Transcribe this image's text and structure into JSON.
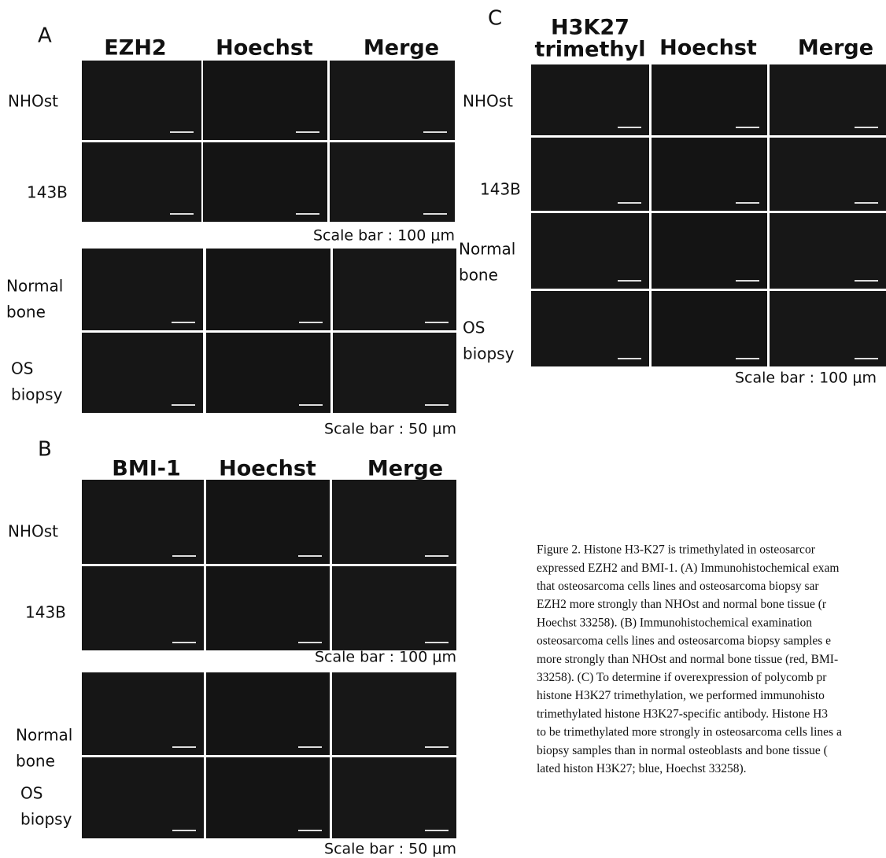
{
  "panels": [
    {
      "letter": "A",
      "groups": [
        {
          "columns": [
            [
              "EZH2"
            ],
            [
              "Hoechst"
            ],
            [
              "Merge"
            ]
          ],
          "rows": [
            [
              "NHOst"
            ],
            [
              "143B"
            ]
          ],
          "scale_bar": "Scale bar : 100 μm"
        },
        {
          "rows": [
            [
              "Normal",
              "bone"
            ],
            [
              "OS",
              "biopsy"
            ]
          ],
          "scale_bar": "Scale bar : 50 μm"
        }
      ]
    },
    {
      "letter": "B",
      "groups": [
        {
          "columns": [
            [
              "BMI-1"
            ],
            [
              "Hoechst"
            ],
            [
              "Merge"
            ]
          ],
          "rows": [
            [
              "NHOst"
            ],
            [
              "143B"
            ]
          ],
          "scale_bar": "Scale bar : 100 μm"
        },
        {
          "rows": [
            [
              "Normal",
              "bone"
            ],
            [
              "OS",
              "biopsy"
            ]
          ],
          "scale_bar": "Scale bar : 50 μm"
        }
      ]
    },
    {
      "letter": "C",
      "groups": [
        {
          "columns": [
            [
              "H3K27",
              "trimethyl"
            ],
            [
              "Hoechst"
            ],
            [
              "Merge"
            ]
          ],
          "rows": [
            [
              "NHOst"
            ],
            [
              "143B"
            ],
            [
              "Normal",
              "bone"
            ],
            [
              "OS",
              "biopsy"
            ]
          ],
          "scale_bar": "Scale bar : 100 μm"
        }
      ]
    }
  ],
  "caption": {
    "lines": [
      "Figure 2. Histone H3-K27 is trimethylated in osteosarcor",
      "expressed EZH2 and BMI-1. (A) Immunohistochemical exam",
      "that osteosarcoma cells lines and osteosarcoma biopsy sar",
      "EZH2 more strongly than NHOst and normal bone tissue (r",
      "Hoechst 33258). (B) Immunohistochemical examination",
      "osteosarcoma cells lines and osteosarcoma biopsy samples e",
      "more strongly than NHOst and normal bone tissue (red, BMI-",
      "33258). (C) To determine if overexpression of polycomb pr",
      "histone H3K27 trimethylation, we performed immunohisto",
      "trimethylated histone H3K27-specific antibody. Histone H3",
      "to be trimethylated more strongly in osteosarcoma cells lines a",
      "biopsy samples than in normal osteoblasts and bone tissue (",
      "lated histon H3K27; blue, Hoechst 33258)."
    ]
  }
}
